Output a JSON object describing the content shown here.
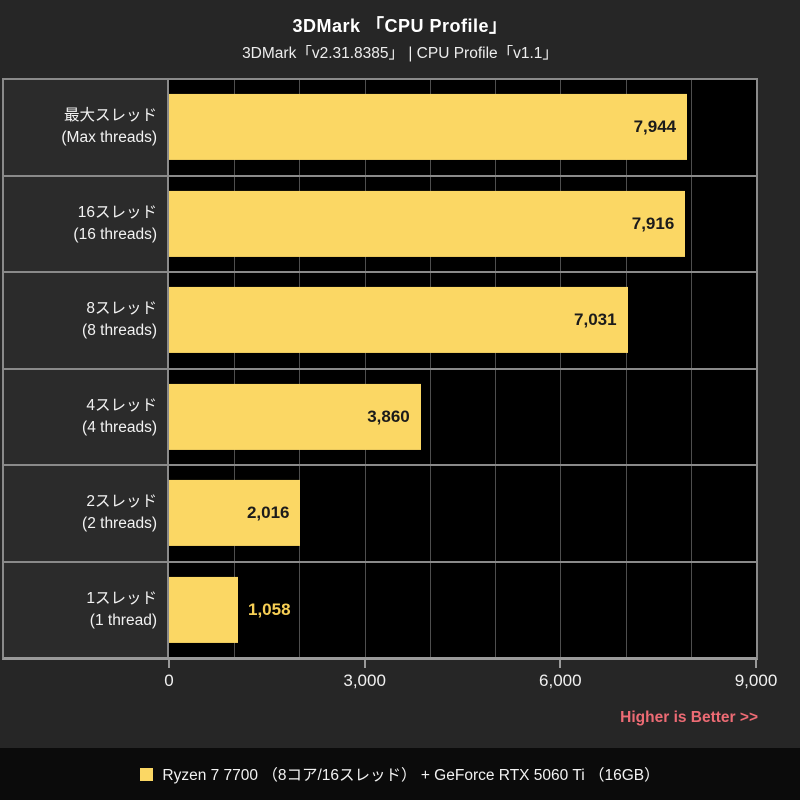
{
  "page": {
    "title": "3DMark 「CPU Profile」",
    "subtitle": "3DMark「v2.31.8385」 | CPU Profile「v1.1」",
    "note": "Higher is Better >>",
    "legend": {
      "swatch_color": "#fbd764",
      "label": "Ryzen 7 7700 （8コア/16スレッド） + GeForce RTX 5060 Ti （16GB）"
    }
  },
  "chart_data": {
    "type": "bar",
    "orientation": "horizontal",
    "title": "3DMark 「CPU Profile」",
    "subtitle": "3DMark「v2.31.8385」 | CPU Profile「v1.1」",
    "categories": [
      {
        "jp": "最大スレッド",
        "en": "(Max threads)"
      },
      {
        "jp": "16スレッド",
        "en": "(16 threads)"
      },
      {
        "jp": "8スレッド",
        "en": "(8 threads)"
      },
      {
        "jp": "4スレッド",
        "en": "(4 threads)"
      },
      {
        "jp": "2スレッド",
        "en": "(2 threads)"
      },
      {
        "jp": "1スレッド",
        "en": "(1 thread)"
      }
    ],
    "series": [
      {
        "name": "Ryzen 7 7700 （8コア/16スレッド） + GeForce RTX 5060 Ti （16GB）",
        "values": [
          7944,
          7916,
          7031,
          3860,
          2016,
          1058
        ]
      }
    ],
    "value_labels": [
      "7,944",
      "7,916",
      "7,031",
      "3,860",
      "2,016",
      "1,058"
    ],
    "xlabel": "",
    "ylabel": "",
    "xlim": [
      0,
      9000
    ],
    "xticks": [
      {
        "value": 0,
        "label": "0"
      },
      {
        "value": 3000,
        "label": "3,000"
      },
      {
        "value": 6000,
        "label": "6,000"
      },
      {
        "value": 9000,
        "label": "9,000"
      }
    ],
    "gridline_interval": 1000,
    "grid": true,
    "legend_position": "bottom",
    "annotation": "Higher is Better >>",
    "higher_is_better": true,
    "bar_color": "#fbd764",
    "value_color_inside": "#1b1b1b",
    "value_color_outside": "#f7cf55",
    "plot_background": "#000000",
    "page_background": "#262626"
  }
}
